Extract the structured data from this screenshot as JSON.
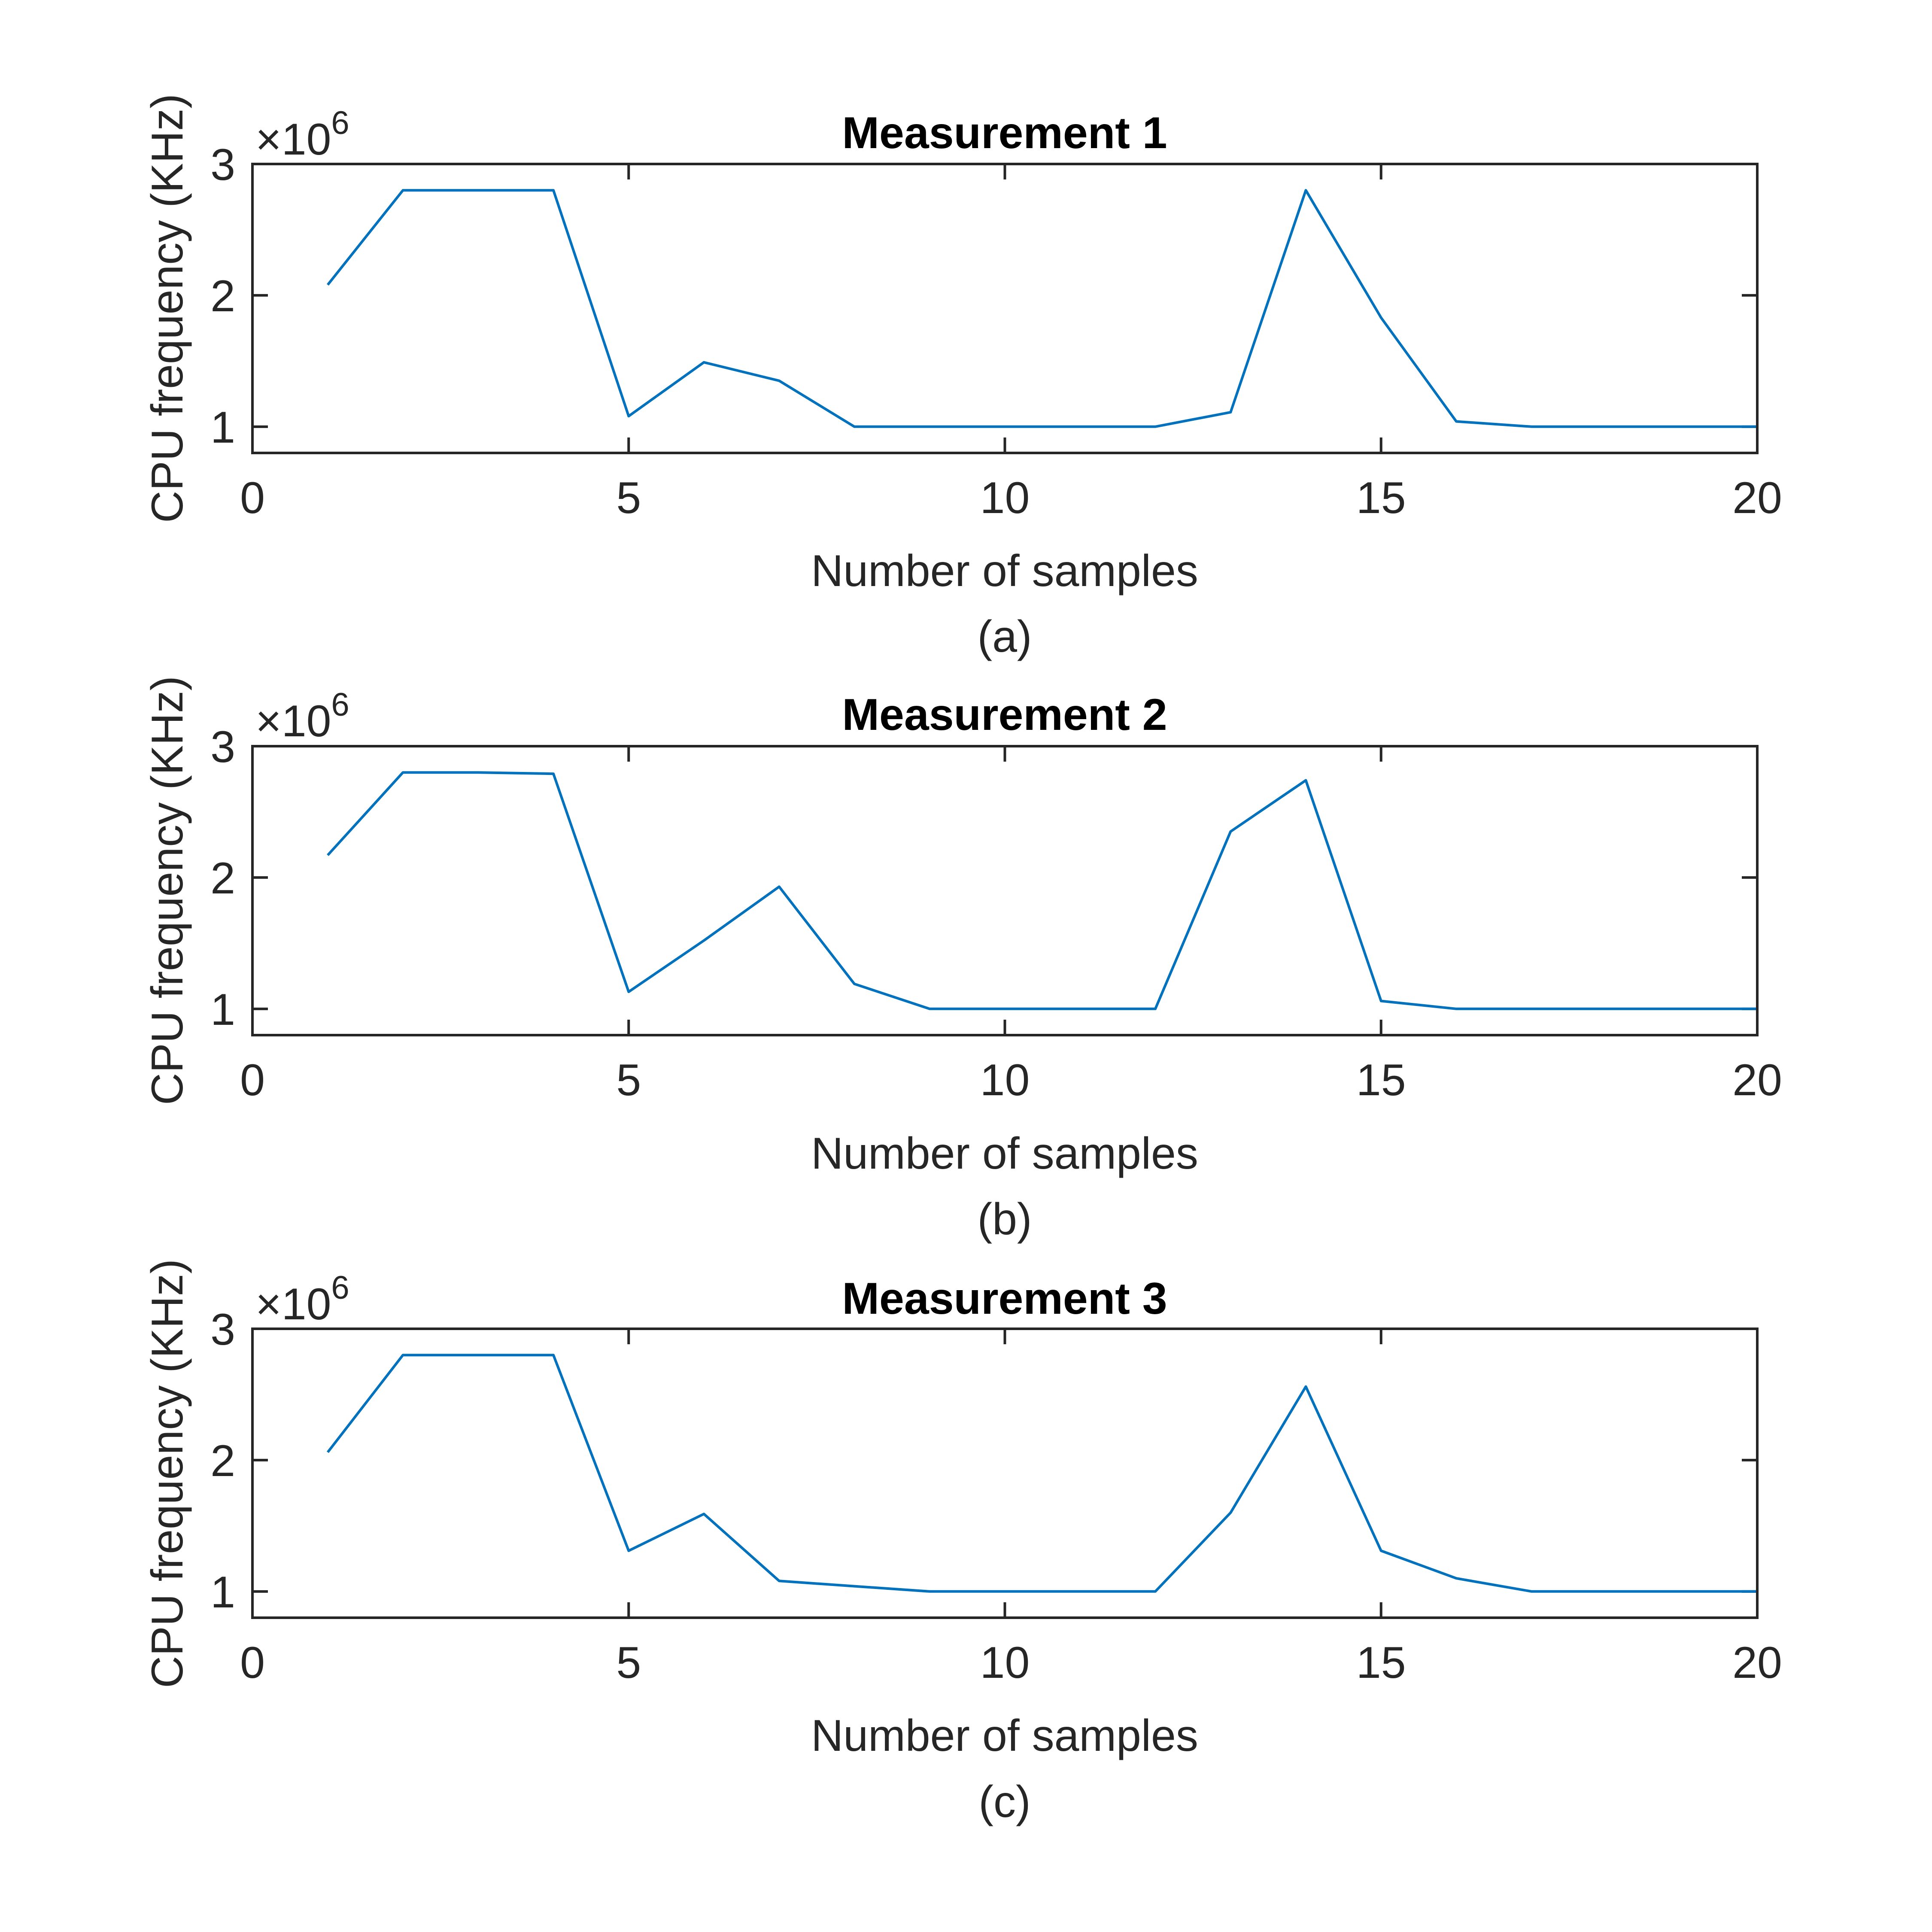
{
  "chart_data": [
    {
      "type": "line",
      "title": "Measurement 1",
      "xlabel": "Number of samples",
      "ylabel": "CPU frequency (KHz)",
      "y_multiplier_base": "×10",
      "y_multiplier_exp": "6",
      "caption": "(a)",
      "xlim": [
        0,
        20
      ],
      "ylim": [
        0.8,
        3.0
      ],
      "xticks": [
        "0",
        "5",
        "10",
        "15",
        "20"
      ],
      "yticks": [
        "1",
        "2",
        "3"
      ],
      "grid": false,
      "color": "#0072BD",
      "x": [
        1,
        2,
        3,
        4,
        5,
        6,
        7,
        8,
        9,
        10,
        11,
        12,
        13,
        14,
        15,
        16,
        17,
        18,
        19,
        20
      ],
      "y": [
        2.08,
        2.8,
        2.8,
        2.8,
        1.08,
        1.49,
        1.35,
        1.0,
        1.0,
        1.0,
        1.0,
        1.0,
        1.11,
        2.8,
        1.83,
        1.04,
        1.0,
        1.0,
        1.0,
        1.0
      ]
    },
    {
      "type": "line",
      "title": "Measurement 2",
      "xlabel": "Number of samples",
      "ylabel": "CPU frequency (KHz)",
      "y_multiplier_base": "×10",
      "y_multiplier_exp": "6",
      "caption": "(b)",
      "xlim": [
        0,
        20
      ],
      "ylim": [
        0.8,
        3.0
      ],
      "xticks": [
        "0",
        "5",
        "10",
        "15",
        "20"
      ],
      "yticks": [
        "1",
        "2",
        "3"
      ],
      "grid": false,
      "color": "#0072BD",
      "x": [
        1,
        2,
        3,
        4,
        5,
        6,
        7,
        8,
        9,
        10,
        11,
        12,
        13,
        14,
        15,
        16,
        17,
        18,
        19,
        20
      ],
      "y": [
        2.17,
        2.8,
        2.8,
        2.79,
        1.13,
        1.52,
        1.93,
        1.19,
        1.0,
        1.0,
        1.0,
        1.0,
        2.35,
        2.74,
        1.06,
        1.0,
        1.0,
        1.0,
        1.0,
        1.0
      ]
    },
    {
      "type": "line",
      "title": "Measurement 3",
      "xlabel": "Number of samples",
      "ylabel": "CPU frequency (KHz)",
      "y_multiplier_base": "×10",
      "y_multiplier_exp": "6",
      "caption": "(c)",
      "xlim": [
        0,
        20
      ],
      "ylim": [
        0.8,
        3.0
      ],
      "xticks": [
        "0",
        "5",
        "10",
        "15",
        "20"
      ],
      "yticks": [
        "1",
        "2",
        "3"
      ],
      "grid": false,
      "color": "#0072BD",
      "x": [
        1,
        2,
        3,
        4,
        5,
        6,
        7,
        8,
        9,
        10,
        11,
        12,
        13,
        14,
        15,
        16,
        17,
        18,
        19,
        20
      ],
      "y": [
        2.06,
        2.8,
        2.8,
        2.8,
        1.31,
        1.59,
        1.08,
        1.04,
        1.0,
        1.0,
        1.0,
        1.0,
        1.6,
        2.56,
        1.31,
        1.1,
        1.0,
        1.0,
        1.0,
        1.0
      ]
    }
  ]
}
